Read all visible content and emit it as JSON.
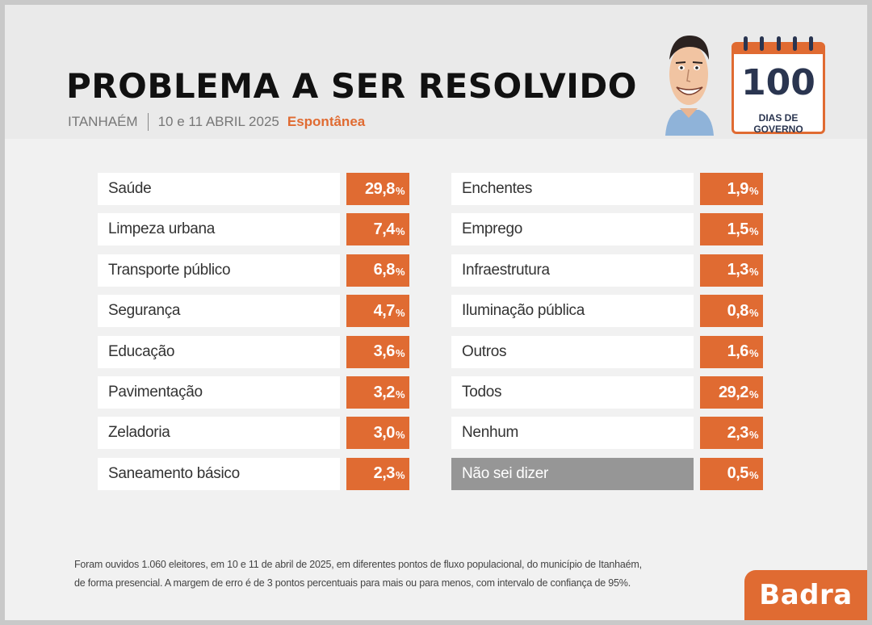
{
  "header": {
    "title": "PROBLEMA A SER RESOLVIDO",
    "location": "ITANHAÉM",
    "date": "10 e 11 ABRIL 2025",
    "mode": "Espontânea",
    "calendar_number": "100",
    "calendar_label": "DIAS DE GOVERNO"
  },
  "colors": {
    "accent": "#e06b32",
    "muted": "#969696",
    "navy": "#2a3550"
  },
  "chart_data": {
    "type": "table",
    "unit": "%",
    "left": [
      {
        "label": "Saúde",
        "value": "29,8"
      },
      {
        "label": "Limpeza urbana",
        "value": "7,4"
      },
      {
        "label": "Transporte público",
        "value": "6,8"
      },
      {
        "label": "Segurança",
        "value": "4,7"
      },
      {
        "label": "Educação",
        "value": "3,6"
      },
      {
        "label": "Pavimentação",
        "value": "3,2"
      },
      {
        "label": "Zeladoria",
        "value": "3,0"
      },
      {
        "label": "Saneamento básico",
        "value": "2,3"
      }
    ],
    "right": [
      {
        "label": "Enchentes",
        "value": "1,9"
      },
      {
        "label": "Emprego",
        "value": "1,5"
      },
      {
        "label": "Infraestrutura",
        "value": "1,3"
      },
      {
        "label": "Iluminação pública",
        "value": "0,8"
      },
      {
        "label": "Outros",
        "value": "1,6"
      },
      {
        "label": "Todos",
        "value": "29,2"
      },
      {
        "label": "Nenhum",
        "value": "2,3"
      },
      {
        "label": "Não sei dizer",
        "value": "0,5",
        "muted": true
      }
    ]
  },
  "footnote": {
    "line1": "Foram ouvidos 1.060 eleitores, em 10 e 11 de abril de 2025, em diferentes pontos de fluxo populacional, do município de Itanhaém,",
    "line2": "de forma presencial. A margem de erro é de 3 pontos percentuais para mais ou para menos, com intervalo de confiança de 95%."
  },
  "brand": "Badra"
}
